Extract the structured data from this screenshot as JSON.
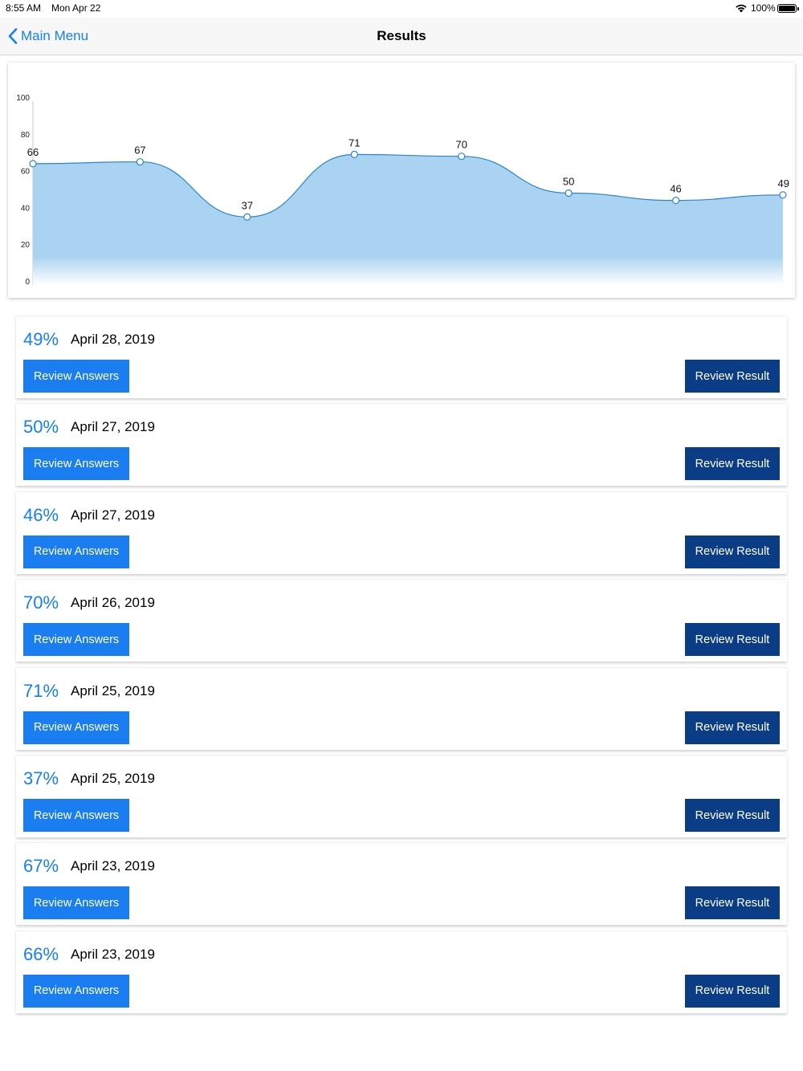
{
  "status_bar": {
    "time": "8:55 AM",
    "date": "Mon Apr 22",
    "battery": "100%",
    "icons": [
      "wifi-icon",
      "battery-icon"
    ]
  },
  "nav": {
    "back_label": "Main Menu",
    "title": "Results",
    "back_icon": "chevron-left-icon"
  },
  "colors": {
    "accent": "#157efb",
    "answers_button": "#1a7ef1",
    "result_button": "#0a3d85",
    "area_fill": "#a9d3f1",
    "line": "#2b86cc"
  },
  "chart_data": {
    "type": "area",
    "values": [
      66,
      67,
      37,
      71,
      70,
      50,
      46,
      49
    ],
    "data_labels": [
      "66",
      "67",
      "37",
      "71",
      "70",
      "50",
      "46",
      "49"
    ],
    "y_ticks": [
      "100",
      "80",
      "60",
      "40",
      "20",
      "0"
    ],
    "ylim": [
      0,
      100
    ],
    "smooth": true,
    "grid": false
  },
  "results": [
    {
      "percent": "49%",
      "date": "April 28, 2019",
      "answers_label": "Review Answers",
      "result_label": "Review Result"
    },
    {
      "percent": "50%",
      "date": "April 27, 2019",
      "answers_label": "Review Answers",
      "result_label": "Review Result"
    },
    {
      "percent": "46%",
      "date": "April 27, 2019",
      "answers_label": "Review Answers",
      "result_label": "Review Result"
    },
    {
      "percent": "70%",
      "date": "April 26, 2019",
      "answers_label": "Review Answers",
      "result_label": "Review Result"
    },
    {
      "percent": "71%",
      "date": "April 25, 2019",
      "answers_label": "Review Answers",
      "result_label": "Review Result"
    },
    {
      "percent": "37%",
      "date": "April 25, 2019",
      "answers_label": "Review Answers",
      "result_label": "Review Result"
    },
    {
      "percent": "67%",
      "date": "April 23, 2019",
      "answers_label": "Review Answers",
      "result_label": "Review Result"
    },
    {
      "percent": "66%",
      "date": "April 23, 2019",
      "answers_label": "Review Answers",
      "result_label": "Review Result"
    }
  ]
}
